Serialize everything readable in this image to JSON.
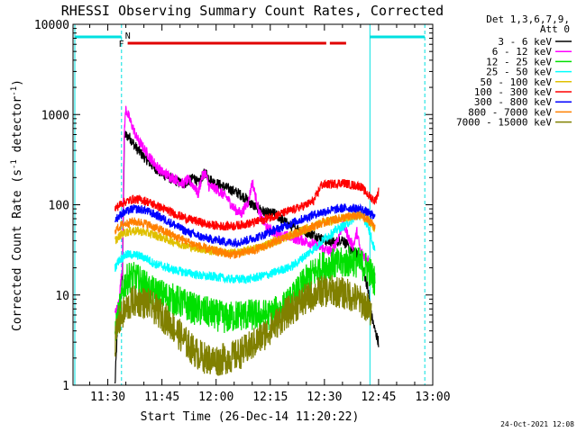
{
  "chart_data": {
    "type": "line",
    "title": "RHESSI Observing Summary Count Rates, Corrected",
    "xlabel": "Start Time (26-Dec-14 11:20:22)",
    "ylabel_main": "Corrected Count Rate (s",
    "ylabel_sup": "-1",
    "ylabel_mid": " detector",
    "ylabel_end": ")",
    "yscale": "log",
    "ylim": [
      1,
      10000
    ],
    "xlim_minutes": [
      680.37,
      780
    ],
    "x_ticks": [
      {
        "t": 690,
        "label": "11:30"
      },
      {
        "t": 705,
        "label": "11:45"
      },
      {
        "t": 720,
        "label": "12:00"
      },
      {
        "t": 735,
        "label": "12:15"
      },
      {
        "t": 750,
        "label": "12:30"
      },
      {
        "t": 765,
        "label": "12:45"
      },
      {
        "t": 780,
        "label": "13:00"
      }
    ],
    "y_ticks": [
      {
        "v": 1,
        "label": "1"
      },
      {
        "v": 10,
        "label": "10"
      },
      {
        "v": 100,
        "label": "100"
      },
      {
        "v": 1000,
        "label": "1000"
      },
      {
        "v": 10000,
        "label": "10000"
      }
    ],
    "legend_header": [
      "Det 1,3,6,7,9,",
      "Att 0"
    ],
    "legend_position": "right",
    "flags": {
      "F": "F",
      "N": "N",
      "flare_color": "#e00000",
      "night_color": "#00e0e0",
      "flare_segments": [
        [
          695.5,
          750.5
        ],
        [
          751.5,
          756
        ]
      ],
      "night_segments": [
        [
          681,
          693.8
        ],
        [
          762.6,
          777.8
        ]
      ],
      "day_lines": [
        693.8,
        762.6
      ],
      "dashed_lines": [
        693.8,
        777.8
      ]
    },
    "series": [
      {
        "name": "3 - 6 keV",
        "color": "#000000",
        "points": [
          [
            692,
            1
          ],
          [
            692.5,
            3
          ],
          [
            693,
            6
          ],
          [
            694,
            12
          ],
          [
            694.6,
            600
          ],
          [
            696,
            560
          ],
          [
            698,
            420
          ],
          [
            700,
            340
          ],
          [
            702,
            280
          ],
          [
            705,
            220
          ],
          [
            708,
            190
          ],
          [
            711,
            170
          ],
          [
            714,
            200
          ],
          [
            715,
            170
          ],
          [
            716,
            200
          ],
          [
            717,
            230
          ],
          [
            718,
            200
          ],
          [
            719,
            180
          ],
          [
            722,
            160
          ],
          [
            726,
            135
          ],
          [
            728,
            120
          ],
          [
            730,
            100
          ],
          [
            732,
            90
          ],
          [
            734,
            80
          ],
          [
            736,
            80
          ],
          [
            738,
            70
          ],
          [
            740,
            60
          ],
          [
            742,
            55
          ],
          [
            744,
            52
          ],
          [
            746,
            48
          ],
          [
            748,
            45
          ],
          [
            750,
            40
          ],
          [
            753,
            38
          ],
          [
            755,
            42
          ],
          [
            757,
            32
          ],
          [
            758,
            30
          ],
          [
            759,
            28
          ],
          [
            760,
            25
          ],
          [
            762,
            12
          ],
          [
            763,
            6
          ],
          [
            764,
            4
          ],
          [
            765,
            3
          ]
        ]
      },
      {
        "name": "6 - 12 keV",
        "color": "#ff00ff",
        "points": [
          [
            692,
            6
          ],
          [
            693,
            8
          ],
          [
            694,
            20
          ],
          [
            694.6,
            700
          ],
          [
            695,
            1150
          ],
          [
            696,
            900
          ],
          [
            698,
            550
          ],
          [
            700,
            420
          ],
          [
            702,
            320
          ],
          [
            705,
            230
          ],
          [
            708,
            200
          ],
          [
            711,
            170
          ],
          [
            712,
            190
          ],
          [
            714,
            160
          ],
          [
            715,
            130
          ],
          [
            716,
            200
          ],
          [
            717,
            230
          ],
          [
            718,
            160
          ],
          [
            720,
            150
          ],
          [
            723,
            120
          ],
          [
            725,
            90
          ],
          [
            727,
            80
          ],
          [
            729,
            110
          ],
          [
            730,
            180
          ],
          [
            731,
            120
          ],
          [
            732,
            80
          ],
          [
            734,
            55
          ],
          [
            736,
            50
          ],
          [
            738,
            45
          ],
          [
            740,
            45
          ],
          [
            742,
            42
          ],
          [
            744,
            40
          ],
          [
            746,
            38
          ],
          [
            748,
            35
          ],
          [
            750,
            32
          ],
          [
            752,
            30
          ],
          [
            754,
            45
          ],
          [
            755,
            60
          ],
          [
            756,
            52
          ],
          [
            757,
            40
          ],
          [
            758,
            35
          ],
          [
            759,
            50
          ],
          [
            760,
            30
          ],
          [
            762,
            25
          ],
          [
            764,
            15
          ]
        ]
      },
      {
        "name": "12 - 25 keV",
        "color": "#00e000",
        "points": [
          [
            692,
            4
          ],
          [
            693,
            6
          ],
          [
            694.5,
            13
          ],
          [
            696,
            16
          ],
          [
            698,
            15
          ],
          [
            700,
            13
          ],
          [
            702,
            11
          ],
          [
            705,
            10
          ],
          [
            708,
            9
          ],
          [
            711,
            8
          ],
          [
            714,
            7
          ],
          [
            717,
            6.5
          ],
          [
            720,
            6
          ],
          [
            723,
            5.5
          ],
          [
            726,
            6
          ],
          [
            729,
            6
          ],
          [
            732,
            6
          ],
          [
            735,
            6
          ],
          [
            738,
            7
          ],
          [
            740,
            8
          ],
          [
            742,
            10
          ],
          [
            744,
            13
          ],
          [
            746,
            16
          ],
          [
            748,
            19
          ],
          [
            750,
            21
          ],
          [
            752,
            22
          ],
          [
            754,
            22
          ],
          [
            756,
            23
          ],
          [
            758,
            24
          ],
          [
            760,
            22
          ],
          [
            762,
            20
          ],
          [
            764,
            14
          ]
        ]
      },
      {
        "name": "25 - 50 keV",
        "color": "#00ffff",
        "points": [
          [
            692,
            20
          ],
          [
            693,
            24
          ],
          [
            695,
            28
          ],
          [
            697,
            28
          ],
          [
            699,
            27
          ],
          [
            701,
            25
          ],
          [
            703,
            22
          ],
          [
            705,
            21
          ],
          [
            708,
            19
          ],
          [
            711,
            18
          ],
          [
            714,
            17
          ],
          [
            717,
            16
          ],
          [
            720,
            16
          ],
          [
            723,
            15
          ],
          [
            726,
            15
          ],
          [
            729,
            15
          ],
          [
            732,
            16
          ],
          [
            735,
            17
          ],
          [
            738,
            19
          ],
          [
            740,
            20
          ],
          [
            742,
            22
          ],
          [
            744,
            26
          ],
          [
            746,
            30
          ],
          [
            748,
            35
          ],
          [
            750,
            42
          ],
          [
            752,
            48
          ],
          [
            754,
            55
          ],
          [
            756,
            60
          ],
          [
            758,
            70
          ],
          [
            760,
            78
          ],
          [
            762,
            60
          ],
          [
            764,
            30
          ]
        ]
      },
      {
        "name": "50 - 100 keV",
        "color": "#e0c000",
        "points": [
          [
            692,
            40
          ],
          [
            694,
            48
          ],
          [
            697,
            52
          ],
          [
            700,
            50
          ],
          [
            703,
            46
          ],
          [
            706,
            42
          ],
          [
            709,
            38
          ],
          [
            712,
            35
          ],
          [
            715,
            33
          ],
          [
            718,
            31
          ],
          [
            721,
            30
          ],
          [
            724,
            29
          ],
          [
            727,
            30
          ],
          [
            730,
            32
          ],
          [
            733,
            35
          ],
          [
            736,
            39
          ],
          [
            739,
            43
          ],
          [
            742,
            48
          ],
          [
            745,
            54
          ],
          [
            748,
            60
          ],
          [
            751,
            65
          ],
          [
            754,
            70
          ],
          [
            757,
            74
          ],
          [
            760,
            76
          ],
          [
            762,
            70
          ],
          [
            764,
            55
          ]
        ]
      },
      {
        "name": "100 - 300 keV",
        "color": "#ff0000",
        "points": [
          [
            692,
            90
          ],
          [
            694,
            105
          ],
          [
            697,
            115
          ],
          [
            700,
            112
          ],
          [
            703,
            100
          ],
          [
            706,
            88
          ],
          [
            709,
            78
          ],
          [
            712,
            70
          ],
          [
            715,
            65
          ],
          [
            718,
            60
          ],
          [
            721,
            58
          ],
          [
            724,
            58
          ],
          [
            727,
            60
          ],
          [
            730,
            63
          ],
          [
            733,
            68
          ],
          [
            736,
            75
          ],
          [
            739,
            82
          ],
          [
            742,
            90
          ],
          [
            745,
            100
          ],
          [
            747,
            110
          ],
          [
            748,
            130
          ],
          [
            749,
            165
          ],
          [
            752,
            170
          ],
          [
            755,
            175
          ],
          [
            758,
            165
          ],
          [
            760,
            160
          ],
          [
            762,
            130
          ],
          [
            764,
            110
          ],
          [
            765,
            140
          ]
        ]
      },
      {
        "name": "300 - 800 keV",
        "color": "#0000ff",
        "points": [
          [
            692,
            68
          ],
          [
            694,
            80
          ],
          [
            697,
            90
          ],
          [
            700,
            88
          ],
          [
            703,
            78
          ],
          [
            706,
            68
          ],
          [
            709,
            58
          ],
          [
            712,
            50
          ],
          [
            715,
            45
          ],
          [
            718,
            42
          ],
          [
            721,
            40
          ],
          [
            724,
            38
          ],
          [
            727,
            39
          ],
          [
            730,
            42
          ],
          [
            733,
            46
          ],
          [
            736,
            52
          ],
          [
            739,
            58
          ],
          [
            742,
            65
          ],
          [
            745,
            72
          ],
          [
            748,
            80
          ],
          [
            751,
            86
          ],
          [
            754,
            90
          ],
          [
            757,
            92
          ],
          [
            760,
            90
          ],
          [
            762,
            82
          ],
          [
            764,
            72
          ]
        ]
      },
      {
        "name": "800 - 7000 keV",
        "color": "#ff8000",
        "points": [
          [
            692,
            52
          ],
          [
            694,
            60
          ],
          [
            697,
            65
          ],
          [
            700,
            63
          ],
          [
            703,
            56
          ],
          [
            706,
            50
          ],
          [
            709,
            44
          ],
          [
            712,
            39
          ],
          [
            715,
            35
          ],
          [
            718,
            32
          ],
          [
            721,
            30
          ],
          [
            724,
            28
          ],
          [
            727,
            29
          ],
          [
            730,
            31
          ],
          [
            733,
            34
          ],
          [
            736,
            38
          ],
          [
            739,
            43
          ],
          [
            742,
            48
          ],
          [
            745,
            54
          ],
          [
            748,
            60
          ],
          [
            751,
            66
          ],
          [
            754,
            70
          ],
          [
            757,
            74
          ],
          [
            760,
            75
          ],
          [
            762,
            68
          ],
          [
            764,
            58
          ]
        ]
      },
      {
        "name": "7000 - 15000 keV",
        "color": "#808000",
        "points": [
          [
            692,
            3
          ],
          [
            693,
            5
          ],
          [
            695,
            7
          ],
          [
            697,
            8.5
          ],
          [
            699,
            8.5
          ],
          [
            701,
            8
          ],
          [
            703,
            7
          ],
          [
            705,
            6
          ],
          [
            707,
            5
          ],
          [
            709,
            4
          ],
          [
            711,
            3.2
          ],
          [
            713,
            2.6
          ],
          [
            715,
            2.2
          ],
          [
            717,
            2.0
          ],
          [
            719,
            1.9
          ],
          [
            721,
            1.9
          ],
          [
            723,
            2.0
          ],
          [
            725,
            2.1
          ],
          [
            727,
            2.3
          ],
          [
            729,
            2.6
          ],
          [
            731,
            3.0
          ],
          [
            733,
            3.5
          ],
          [
            735,
            4.2
          ],
          [
            737,
            5
          ],
          [
            739,
            6
          ],
          [
            741,
            7
          ],
          [
            743,
            8
          ],
          [
            745,
            9
          ],
          [
            747,
            10
          ],
          [
            749,
            11
          ],
          [
            751,
            11
          ],
          [
            753,
            11
          ],
          [
            755,
            10.5
          ],
          [
            757,
            10
          ],
          [
            759,
            9
          ],
          [
            761,
            8
          ],
          [
            763,
            6
          ]
        ]
      }
    ]
  },
  "footer": {
    "timestamp": "24-Oct-2021 12:08"
  }
}
